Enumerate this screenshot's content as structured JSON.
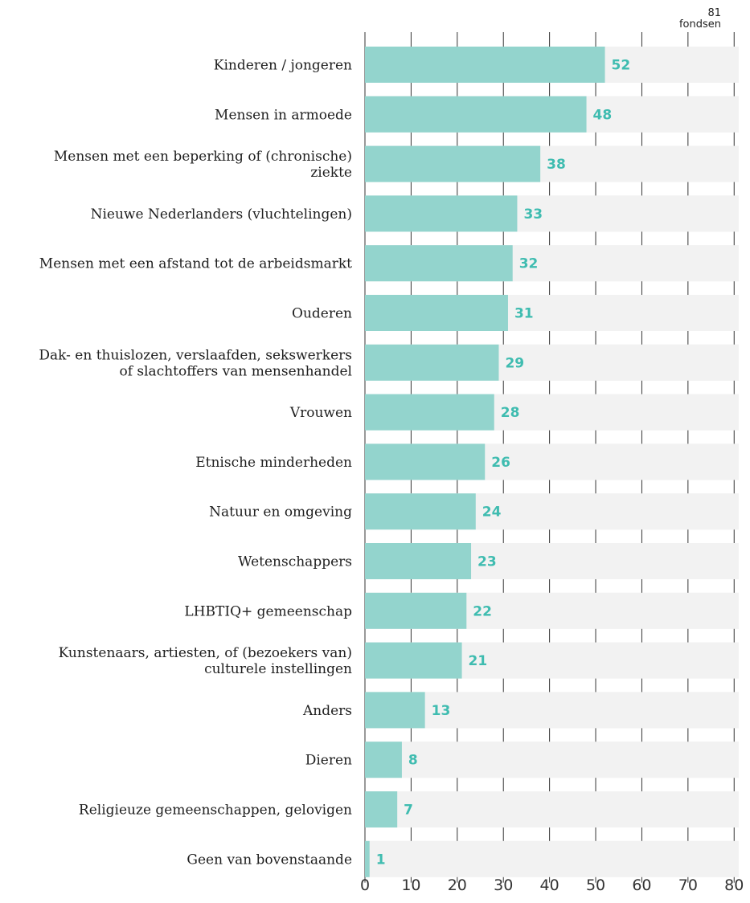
{
  "chart_data": {
    "type": "bar",
    "orientation": "horizontal",
    "title": "",
    "xlabel": "",
    "ylabel": "",
    "xlim": [
      0,
      81
    ],
    "total": {
      "value": "81",
      "unit": "fondsen"
    },
    "x_ticks": [
      "0",
      "10",
      "20",
      "30",
      "40",
      "50",
      "60",
      "70",
      "80"
    ],
    "categories": [
      [
        "Kinderen / jongeren"
      ],
      [
        "Mensen in armoede"
      ],
      [
        "Mensen met een beperking of (chronische)",
        "ziekte"
      ],
      [
        "Nieuwe Nederlanders (vluchtelingen)"
      ],
      [
        "Mensen met een afstand tot de arbeidsmarkt"
      ],
      [
        "Ouderen"
      ],
      [
        "Dak- en thuislozen, verslaafden, sekswerkers",
        "of slachtoffers van mensenhandel"
      ],
      [
        "Vrouwen"
      ],
      [
        "Etnische minderheden"
      ],
      [
        "Natuur en omgeving"
      ],
      [
        "Wetenschappers"
      ],
      [
        "LHBTIQ+ gemeenschap"
      ],
      [
        "Kunstenaars, artiesten, of (bezoekers van)",
        "culturele instellingen"
      ],
      [
        "Anders"
      ],
      [
        "Dieren"
      ],
      [
        "Religieuze gemeenschappen, gelovigen"
      ],
      [
        "Geen van bovenstaande"
      ]
    ],
    "values": [
      "52",
      "48",
      "38",
      "33",
      "32",
      "31",
      "29",
      "28",
      "26",
      "24",
      "23",
      "22",
      "21",
      "13",
      "8",
      "7",
      "1"
    ],
    "grid": true,
    "legend": "none",
    "colors": {
      "bar": "#93d4cd",
      "background_bar": "#f2f2f2",
      "value_text": "#3fbcb0",
      "grid": "#333333"
    }
  }
}
